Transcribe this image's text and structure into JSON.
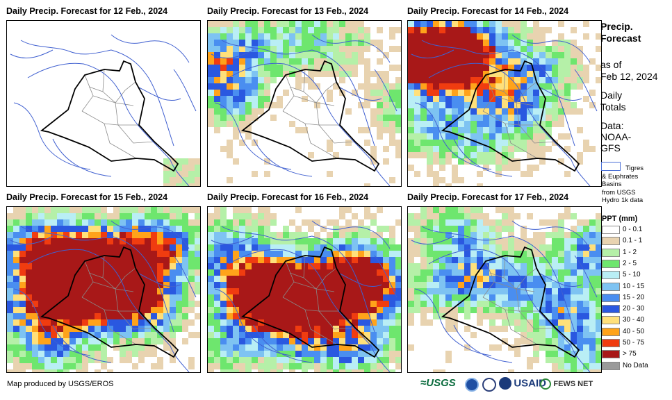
{
  "panels": [
    {
      "title": "Daily Precip. Forecast for 12 Feb., 2024"
    },
    {
      "title": "Daily Precip. Forecast for 13 Feb., 2024"
    },
    {
      "title": "Daily Precip. Forecast for 14 Feb., 2024"
    },
    {
      "title": "Daily Precip. Forecast for 15 Feb., 2024"
    },
    {
      "title": "Daily Precip. Forecast for 16 Feb., 2024"
    },
    {
      "title": "Daily Precip. Forecast for 17 Feb., 2024"
    }
  ],
  "legend": {
    "heading_line1": "Precip.",
    "heading_line2": "Forecast",
    "asof_line1": "as of",
    "asof_line2": "Feb 12, 2024",
    "daily_line1": "Daily",
    "daily_line2": "Totals",
    "data_line1": "Data:",
    "data_line2": "NOAA-",
    "data_line3": "GFS",
    "basin_line1": "Tigres",
    "basin_line2": "& Euphrates",
    "basin_line3": "Basins",
    "basin_line4": "from USGS",
    "basin_line5": "Hydro 1k data",
    "ppt_title": "PPT (mm)",
    "classes": [
      {
        "label": "0 - 0.1",
        "color": "#ffffff"
      },
      {
        "label": "0.1 - 1",
        "color": "#e8d3b0"
      },
      {
        "label": "1 - 2",
        "color": "#b5f0a8"
      },
      {
        "label": "2 - 5",
        "color": "#6ee66e"
      },
      {
        "label": "5 - 10",
        "color": "#b9eef5"
      },
      {
        "label": "10 - 15",
        "color": "#7ec3f2"
      },
      {
        "label": "15 - 20",
        "color": "#4a8ef0"
      },
      {
        "label": "20 - 30",
        "color": "#2a58e0"
      },
      {
        "label": "30 - 40",
        "color": "#ffe07a"
      },
      {
        "label": "40 - 50",
        "color": "#ffa31a"
      },
      {
        "label": "50 - 75",
        "color": "#f03c10"
      },
      {
        "label": "> 75",
        "color": "#a81818"
      },
      {
        "label": "No Data",
        "color": "#9a9a9a"
      }
    ]
  },
  "footer": {
    "credit": "Map produced by USGS/EROS"
  },
  "logos": {
    "usgs": "USGS",
    "usaid": "USAID",
    "fews": "FEWS NET"
  }
}
